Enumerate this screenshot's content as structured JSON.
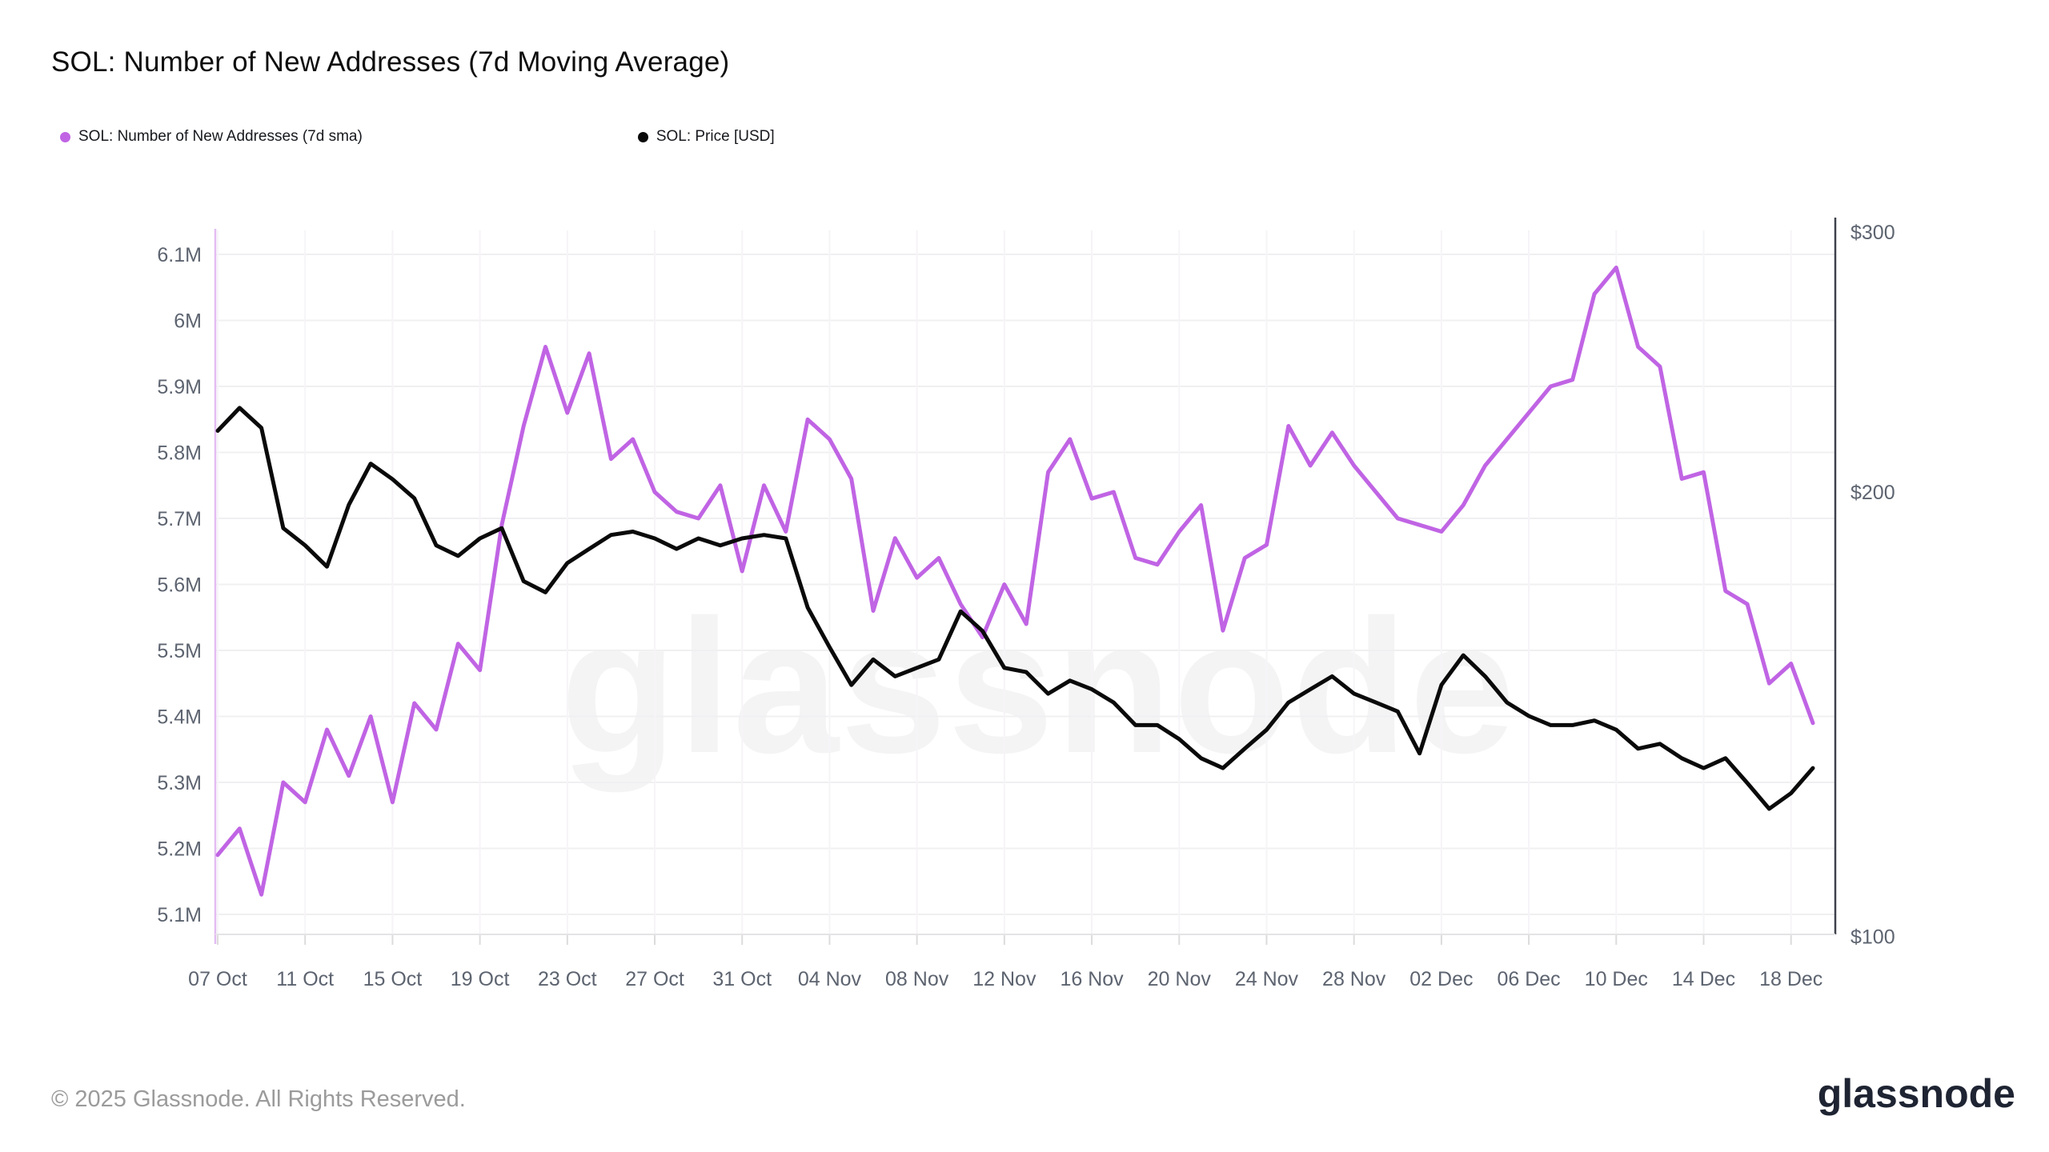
{
  "header": {
    "title": "SOL: Number of New Addresses (7d Moving Average)"
  },
  "legend": {
    "items": [
      {
        "label": "SOL: Number of New Addresses (7d sma)",
        "color": "#c064e4"
      },
      {
        "label": "SOL: Price [USD]",
        "color": "#0a0a0a"
      }
    ]
  },
  "watermark_text": "glassnode",
  "footer": {
    "copyright": "© 2025 Glassnode. All Rights Reserved.",
    "brand": "glassnode"
  },
  "chart_data": {
    "type": "line",
    "title": "SOL: Number of New Addresses (7d Moving Average)",
    "grid": true,
    "legend_position": "top-left",
    "dates": [
      "07 Oct",
      "08 Oct",
      "09 Oct",
      "10 Oct",
      "11 Oct",
      "12 Oct",
      "13 Oct",
      "14 Oct",
      "15 Oct",
      "16 Oct",
      "17 Oct",
      "18 Oct",
      "19 Oct",
      "20 Oct",
      "21 Oct",
      "22 Oct",
      "23 Oct",
      "24 Oct",
      "25 Oct",
      "26 Oct",
      "27 Oct",
      "28 Oct",
      "29 Oct",
      "30 Oct",
      "31 Oct",
      "01 Nov",
      "02 Nov",
      "03 Nov",
      "04 Nov",
      "05 Nov",
      "06 Nov",
      "07 Nov",
      "08 Nov",
      "09 Nov",
      "10 Nov",
      "11 Nov",
      "12 Nov",
      "13 Nov",
      "14 Nov",
      "15 Nov",
      "16 Nov",
      "17 Nov",
      "18 Nov",
      "19 Nov",
      "20 Nov",
      "21 Nov",
      "22 Nov",
      "23 Nov",
      "24 Nov",
      "25 Nov",
      "26 Nov",
      "27 Nov",
      "28 Nov",
      "29 Nov",
      "30 Nov",
      "01 Dec",
      "02 Dec",
      "03 Dec",
      "04 Dec",
      "05 Dec",
      "06 Dec",
      "07 Dec",
      "08 Dec",
      "09 Dec",
      "10 Dec",
      "11 Dec",
      "12 Dec",
      "13 Dec",
      "14 Dec",
      "15 Dec",
      "16 Dec",
      "17 Dec",
      "18 Dec",
      "19 Dec"
    ],
    "series": [
      {
        "name": "SOL: Number of New Addresses (7d sma)",
        "axis": "left",
        "unit": "M addresses",
        "color": "#c064e4",
        "values": [
          5.19,
          5.23,
          5.13,
          5.3,
          5.27,
          5.38,
          5.31,
          5.4,
          5.27,
          5.42,
          5.38,
          5.51,
          5.47,
          5.69,
          5.84,
          5.96,
          5.86,
          5.95,
          5.79,
          5.82,
          5.74,
          5.71,
          5.7,
          5.75,
          5.62,
          5.75,
          5.68,
          5.85,
          5.82,
          5.76,
          5.56,
          5.67,
          5.61,
          5.64,
          5.57,
          5.52,
          5.6,
          5.54,
          5.77,
          5.82,
          5.73,
          5.74,
          5.64,
          5.63,
          5.68,
          5.72,
          5.53,
          5.64,
          5.66,
          5.84,
          5.78,
          5.83,
          5.78,
          5.74,
          5.7,
          5.69,
          5.68,
          5.72,
          5.78,
          5.82,
          5.86,
          5.9,
          5.91,
          6.04,
          6.08,
          5.96,
          5.93,
          5.76,
          5.77,
          5.59,
          5.57,
          5.45,
          5.48,
          5.39
        ]
      },
      {
        "name": "SOL: Price [USD]",
        "axis": "right",
        "unit": "USD",
        "color": "#0a0a0a",
        "values": [
          220,
          228,
          221,
          189,
          184,
          178,
          196,
          209,
          204,
          198,
          184,
          181,
          186,
          189,
          174,
          171,
          179,
          183,
          187,
          188,
          186,
          183,
          186,
          184,
          186,
          187,
          186,
          167,
          157,
          148,
          154,
          150,
          152,
          154,
          166,
          161,
          152,
          151,
          146,
          149,
          147,
          144,
          139,
          139,
          136,
          132,
          130,
          134,
          138,
          144,
          147,
          150,
          146,
          144,
          142,
          133,
          148,
          155,
          150,
          144,
          141,
          139,
          139,
          140,
          138,
          134,
          135,
          132,
          130,
          132,
          127,
          122,
          125,
          130
        ]
      }
    ],
    "y_left": {
      "tick_values": [
        6.1,
        6.0,
        5.9,
        5.8,
        5.7,
        5.6,
        5.5,
        5.4,
        5.3,
        5.2,
        5.1
      ],
      "tick_labels": [
        "6.1M",
        "6M",
        "5.9M",
        "5.8M",
        "5.7M",
        "5.6M",
        "5.5M",
        "5.4M",
        "5.3M",
        "5.2M",
        "5.1M"
      ],
      "range": [
        5.1,
        6.1
      ],
      "scale": "linear"
    },
    "y_right": {
      "tick_values": [
        300,
        200,
        100
      ],
      "tick_labels": [
        "$300",
        "$200",
        "$100"
      ],
      "range": [
        100,
        300
      ],
      "scale": "log"
    },
    "x_tick_indices": [
      0,
      4,
      8,
      12,
      16,
      20,
      24,
      28,
      32,
      36,
      40,
      44,
      48,
      52,
      56,
      60,
      64,
      68,
      72
    ],
    "colors": {
      "grid": "#f0f0f2",
      "grid_vertical": "#f6f4f7",
      "axis_left_line": "#e3bcf2",
      "axis_right_line": "#3e424c",
      "axis_bottom_line": "#e4e4e6",
      "tick_text": "#5d6470"
    }
  }
}
